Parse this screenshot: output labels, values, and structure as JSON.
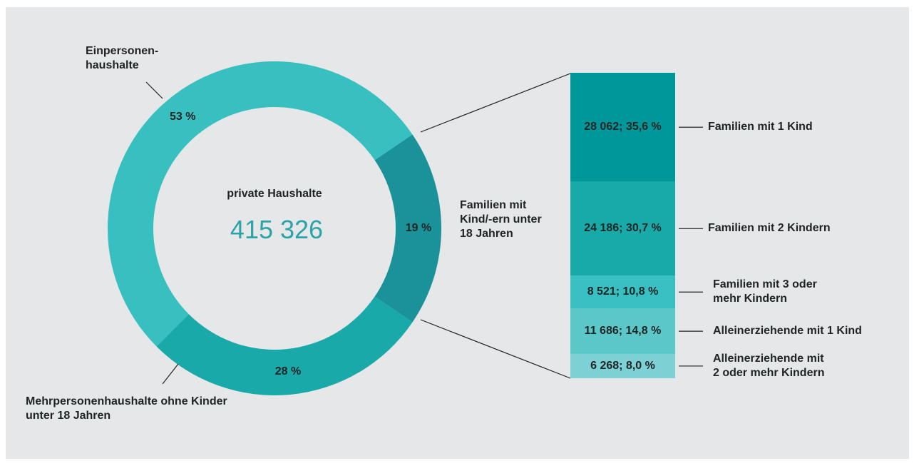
{
  "chart_data": [
    {
      "type": "donut",
      "center_label": "private Haushalte",
      "center_value": "415 326",
      "categories": [
        "Einpersonen-\nhaushalte",
        "Familien mit\nKind/-ern unter\n18 Jahren",
        "Mehrpersonenhaushalte ohne Kinder\nunter 18 Jahren"
      ],
      "values": [
        53,
        19,
        28
      ],
      "value_labels": [
        "53 %",
        "19 %",
        "28 %"
      ],
      "colors": [
        "#38bfc0",
        "#1b9199",
        "#18a9a8"
      ]
    },
    {
      "type": "stacked-bar",
      "categories": [
        "Familien mit 1 Kind",
        "Familien mit 2 Kindern",
        "Familien mit 3 oder\nmehr Kindern",
        "Alleinerziehende mit 1 Kind",
        "Alleinerziehende mit\n2 oder mehr Kindern"
      ],
      "values": [
        28062,
        24186,
        8521,
        11686,
        6268
      ],
      "value_labels": [
        "28 062; 35,6 %",
        "24 186; 30,7 %",
        "8 521; 10,8 %",
        "11 686; 14,8 %",
        "6 268; 8,0 %"
      ],
      "colors": [
        "#00979a",
        "#17aaa8",
        "#38c0c2",
        "#5bc7c8",
        "#7dd0d3"
      ]
    }
  ]
}
